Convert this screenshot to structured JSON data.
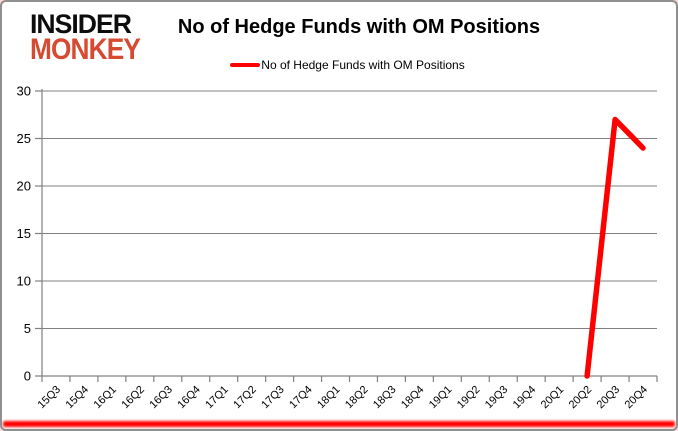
{
  "logo": {
    "line1": "INSIDER",
    "line2": "MONKEY"
  },
  "header": {
    "title": "No of Hedge Funds with OM Positions"
  },
  "legend": {
    "label": "No of Hedge Funds with OM Positions",
    "color": "#ff0000"
  },
  "colors": {
    "axis": "#808080",
    "grid": "#808080",
    "series_line": "#ff0000",
    "logo_red": "#d64a32",
    "bottom_bar": "#ff0000",
    "text": "#000000"
  },
  "chart_data": {
    "type": "line",
    "title": "No of Hedge Funds with OM Positions",
    "categories": [
      "15Q3",
      "15Q4",
      "16Q1",
      "16Q2",
      "16Q3",
      "16Q4",
      "17Q1",
      "17Q2",
      "17Q3",
      "17Q4",
      "18Q1",
      "18Q2",
      "18Q3",
      "18Q4",
      "19Q1",
      "19Q2",
      "19Q3",
      "19Q4",
      "20Q1",
      "20Q2",
      "20Q3",
      "20Q4"
    ],
    "series": [
      {
        "name": "No of Hedge Funds with OM Positions",
        "color": "#ff0000",
        "values": [
          null,
          null,
          null,
          null,
          null,
          null,
          null,
          null,
          null,
          null,
          null,
          null,
          null,
          null,
          null,
          null,
          null,
          null,
          null,
          0,
          27,
          24
        ]
      }
    ],
    "ylabel": "",
    "xlabel": "",
    "ylim": [
      0,
      30
    ],
    "yticks": [
      0,
      5,
      10,
      15,
      20,
      25,
      30
    ],
    "grid": true,
    "legend_position": "top-center",
    "x_tick_label_rotation": -45
  }
}
